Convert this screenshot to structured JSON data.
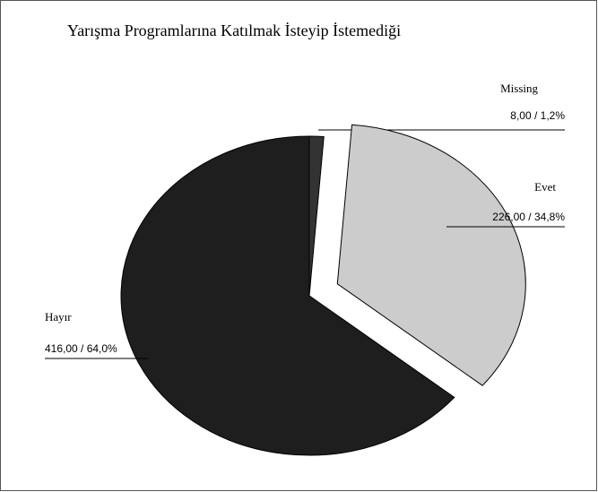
{
  "chart_data": {
    "type": "pie",
    "title": "Yarışma Programlarına Katılmak İsteyip İstemediği",
    "categories": [
      "Missing",
      "Evet",
      "Hayır"
    ],
    "values": [
      8,
      226,
      416
    ],
    "value_labels": [
      "8,00 / 1,2%",
      "226,00 / 34,8%",
      "416,00 / 64,0%"
    ],
    "colors": [
      "#333333",
      "#cccccc",
      "#1e1e1e"
    ],
    "exploded": [
      "Evet"
    ]
  }
}
